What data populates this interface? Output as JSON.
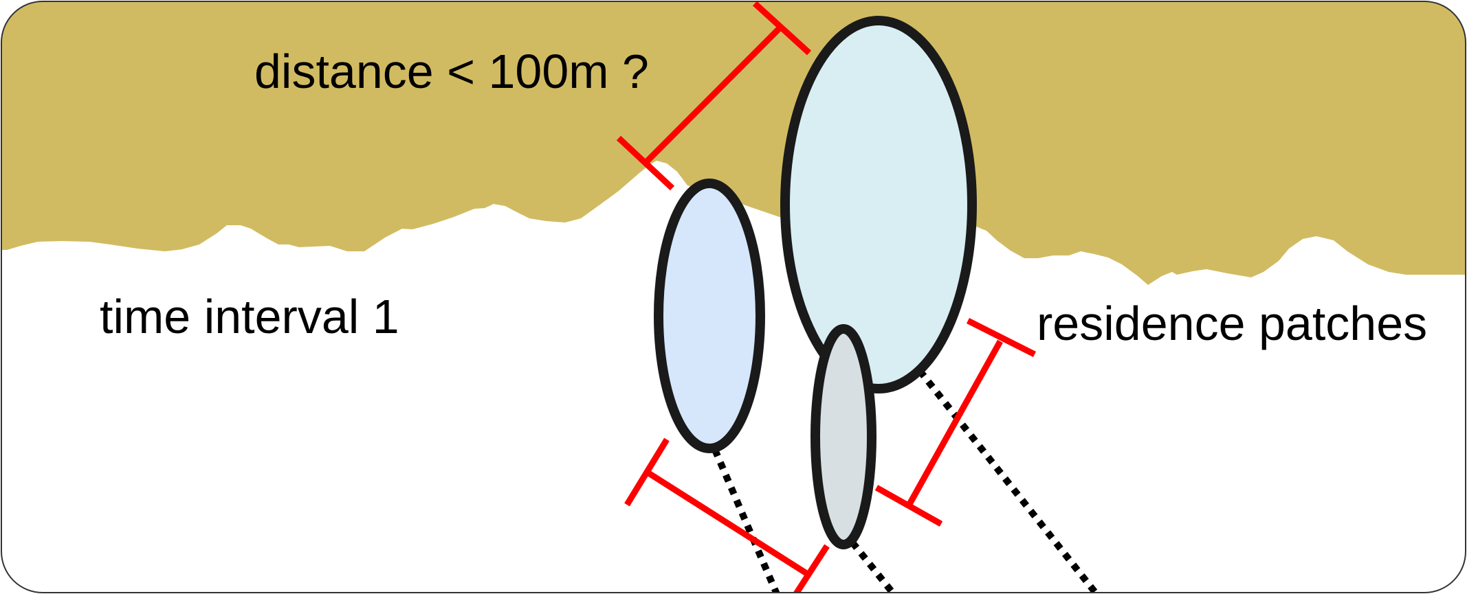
{
  "labels": {
    "distance": "distance < 100m ?",
    "time_interval": "time interval 1",
    "residence_patches": "residence patches"
  },
  "colors": {
    "ground": "#D1BB62",
    "background": "#FFFFFF",
    "frame": "#333333",
    "outline": "#1A1A1A",
    "measure": "#FF0000",
    "patch_left": "#D6E6FB",
    "patch_large": "#D8EEF3",
    "patch_small": "#D7DFE2"
  },
  "icons": {
    "measure_marker": "red-dimension-bar",
    "path_marker": "black-dotted-line"
  }
}
